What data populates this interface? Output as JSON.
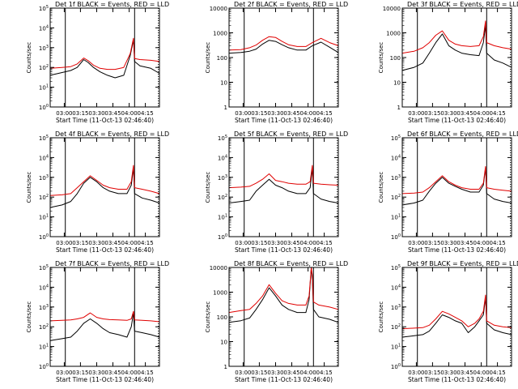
{
  "colors": {
    "events": "#000000",
    "lld": "#e00000",
    "axis": "#000000",
    "background": "#ffffff"
  },
  "shared": {
    "ylabel": "Counts/sec",
    "xlabel": "Start Time (11-Oct-13 02:46:40)",
    "xticks": [
      "03:00",
      "03:15",
      "03:30",
      "03:45",
      "04:00",
      "04:15"
    ]
  },
  "chart_data": [
    {
      "type": "line",
      "title": "Det 1f BLACK = Events, RED = LLD",
      "yscale": "log",
      "ylim": [
        1,
        100000
      ],
      "yticks": [
        {
          "v": 1,
          "m": "0"
        },
        {
          "v": 10,
          "m": "1"
        },
        {
          "v": 100,
          "m": "2"
        },
        {
          "v": 1000,
          "m": "3"
        },
        {
          "v": 10000,
          "m": "4"
        },
        {
          "v": 100000,
          "m": "5"
        }
      ],
      "ytick_style": "exp",
      "solid_markers": [
        "03:01",
        "04:05"
      ],
      "dotted_markers": [
        "04:27"
      ],
      "x": [
        "02:47",
        "02:58",
        "03:06",
        "03:12",
        "03:18",
        "03:22",
        "03:27",
        "03:33",
        "03:40",
        "03:47",
        "03:55",
        "04:01",
        "04:04",
        "04:05",
        "04:10",
        "04:20",
        "04:28"
      ],
      "series": [
        {
          "name": "Events",
          "color": "#000000",
          "values": [
            40,
            55,
            70,
            100,
            250,
            180,
            100,
            60,
            40,
            30,
            40,
            400,
            2500,
            200,
            120,
            90,
            50
          ]
        },
        {
          "name": "LLD",
          "color": "#e00000",
          "values": [
            90,
            100,
            110,
            150,
            300,
            220,
            130,
            90,
            80,
            80,
            100,
            500,
            3000,
            280,
            250,
            230,
            200
          ]
        }
      ]
    },
    {
      "type": "line",
      "title": "Det 2f BLACK = Events, RED = LLD",
      "yscale": "log",
      "ylim": [
        1,
        10000
      ],
      "yticks": [
        {
          "v": 1,
          "m": "1"
        },
        {
          "v": 10,
          "m": "10"
        },
        {
          "v": 100,
          "m": "100"
        },
        {
          "v": 1000,
          "m": "1000"
        },
        {
          "v": 10000,
          "m": "10000"
        }
      ],
      "ytick_style": "plain",
      "solid_markers": [
        "03:01",
        "04:05"
      ],
      "dotted_markers": [
        "04:27"
      ],
      "x": [
        "02:47",
        "02:58",
        "03:06",
        "03:12",
        "03:18",
        "03:24",
        "03:30",
        "03:36",
        "03:42",
        "03:50",
        "03:58",
        "04:04",
        "04:12",
        "04:20",
        "04:28"
      ],
      "series": [
        {
          "name": "Events",
          "color": "#000000",
          "values": [
            150,
            160,
            180,
            220,
            350,
            500,
            450,
            330,
            250,
            200,
            200,
            300,
            420,
            260,
            160
          ]
        },
        {
          "name": "LLD",
          "color": "#e00000",
          "values": [
            200,
            210,
            250,
            320,
            500,
            700,
            650,
            450,
            330,
            280,
            280,
            400,
            600,
            400,
            300
          ]
        }
      ]
    },
    {
      "type": "line",
      "title": "Det 3f BLACK = Events, RED = LLD",
      "yscale": "log",
      "ylim": [
        1,
        10000
      ],
      "yticks": [
        {
          "v": 1,
          "m": "1"
        },
        {
          "v": 10,
          "m": "10"
        },
        {
          "v": 100,
          "m": "100"
        },
        {
          "v": 1000,
          "m": "1000"
        },
        {
          "v": 10000,
          "m": "10000"
        }
      ],
      "ytick_style": "plain",
      "solid_markers": [
        "03:01",
        "04:05"
      ],
      "dotted_markers": [
        "04:27"
      ],
      "x": [
        "02:47",
        "02:58",
        "03:06",
        "03:12",
        "03:18",
        "03:24",
        "03:30",
        "03:36",
        "03:42",
        "03:50",
        "03:58",
        "04:02",
        "04:04",
        "04:05",
        "04:12",
        "04:20",
        "04:28"
      ],
      "series": [
        {
          "name": "Events",
          "color": "#000000",
          "values": [
            30,
            40,
            60,
            150,
            400,
            900,
            300,
            200,
            150,
            130,
            120,
            400,
            2000,
            150,
            80,
            60,
            40
          ]
        },
        {
          "name": "LLD",
          "color": "#e00000",
          "values": [
            150,
            180,
            250,
            400,
            800,
            1200,
            500,
            350,
            300,
            280,
            300,
            700,
            3000,
            400,
            300,
            250,
            220
          ]
        }
      ]
    },
    {
      "type": "line",
      "title": "Det 4f BLACK = Events, RED = LLD",
      "yscale": "log",
      "ylim": [
        1,
        100000
      ],
      "yticks": [
        {
          "v": 1,
          "m": "0"
        },
        {
          "v": 10,
          "m": "1"
        },
        {
          "v": 100,
          "m": "2"
        },
        {
          "v": 1000,
          "m": "3"
        },
        {
          "v": 10000,
          "m": "4"
        },
        {
          "v": 100000,
          "m": "5"
        }
      ],
      "ytick_style": "exp",
      "solid_markers": [
        "03:01",
        "04:05"
      ],
      "dotted_markers": [
        "04:27"
      ],
      "x": [
        "02:47",
        "02:58",
        "03:06",
        "03:12",
        "03:18",
        "03:24",
        "03:30",
        "03:36",
        "03:42",
        "03:50",
        "03:58",
        "04:02",
        "04:04",
        "04:05",
        "04:12",
        "04:20",
        "04:28"
      ],
      "series": [
        {
          "name": "Events",
          "color": "#000000",
          "values": [
            30,
            40,
            60,
            150,
            500,
            1000,
            600,
            300,
            200,
            150,
            150,
            400,
            3000,
            150,
            90,
            70,
            50
          ]
        },
        {
          "name": "LLD",
          "color": "#e00000",
          "values": [
            120,
            130,
            150,
            300,
            600,
            1200,
            700,
            400,
            300,
            250,
            250,
            600,
            4000,
            300,
            250,
            200,
            150
          ]
        }
      ]
    },
    {
      "type": "line",
      "title": "Det 5f BLACK = Events, RED = LLD",
      "yscale": "log",
      "ylim": [
        1,
        100000
      ],
      "yticks": [
        {
          "v": 1,
          "m": "0"
        },
        {
          "v": 10,
          "m": "1"
        },
        {
          "v": 100,
          "m": "2"
        },
        {
          "v": 1000,
          "m": "3"
        },
        {
          "v": 10000,
          "m": "4"
        },
        {
          "v": 100000,
          "m": "5"
        }
      ],
      "ytick_style": "exp",
      "solid_markers": [
        "03:01",
        "04:05"
      ],
      "dotted_markers": [
        "04:27"
      ],
      "x": [
        "02:47",
        "02:58",
        "03:06",
        "03:12",
        "03:18",
        "03:24",
        "03:30",
        "03:36",
        "03:42",
        "03:50",
        "03:58",
        "04:02",
        "04:04",
        "04:05",
        "04:12",
        "04:20",
        "04:28"
      ],
      "series": [
        {
          "name": "Events",
          "color": "#000000",
          "values": [
            50,
            60,
            70,
            200,
            400,
            800,
            400,
            300,
            200,
            150,
            150,
            300,
            3000,
            150,
            80,
            60,
            50
          ]
        },
        {
          "name": "LLD",
          "color": "#e00000",
          "values": [
            300,
            320,
            350,
            500,
            800,
            1500,
            700,
            600,
            500,
            450,
            450,
            600,
            4000,
            500,
            450,
            420,
            400
          ]
        }
      ]
    },
    {
      "type": "line",
      "title": "Det 6f BLACK = Events, RED = LLD",
      "yscale": "log",
      "ylim": [
        1,
        100000
      ],
      "yticks": [
        {
          "v": 1,
          "m": "0"
        },
        {
          "v": 10,
          "m": "1"
        },
        {
          "v": 100,
          "m": "2"
        },
        {
          "v": 1000,
          "m": "3"
        },
        {
          "v": 10000,
          "m": "4"
        },
        {
          "v": 100000,
          "m": "5"
        }
      ],
      "ytick_style": "exp",
      "solid_markers": [
        "03:01",
        "04:05"
      ],
      "dotted_markers": [
        "04:27"
      ],
      "x": [
        "02:47",
        "02:58",
        "03:06",
        "03:12",
        "03:18",
        "03:24",
        "03:30",
        "03:36",
        "03:42",
        "03:50",
        "03:58",
        "04:02",
        "04:04",
        "04:05",
        "04:12",
        "04:20",
        "04:28"
      ],
      "series": [
        {
          "name": "Events",
          "color": "#000000",
          "values": [
            40,
            50,
            70,
            200,
            500,
            1000,
            500,
            350,
            250,
            180,
            180,
            400,
            3000,
            150,
            80,
            60,
            50
          ]
        },
        {
          "name": "LLD",
          "color": "#e00000",
          "values": [
            150,
            160,
            180,
            300,
            600,
            1200,
            600,
            400,
            300,
            250,
            250,
            500,
            3500,
            300,
            250,
            220,
            200
          ]
        }
      ]
    },
    {
      "type": "line",
      "title": "Det 7f BLACK = Events, RED = LLD",
      "yscale": "log",
      "ylim": [
        1,
        100000
      ],
      "yticks": [
        {
          "v": 1,
          "m": "0"
        },
        {
          "v": 10,
          "m": "1"
        },
        {
          "v": 100,
          "m": "2"
        },
        {
          "v": 1000,
          "m": "3"
        },
        {
          "v": 10000,
          "m": "4"
        },
        {
          "v": 100000,
          "m": "5"
        }
      ],
      "ytick_style": "exp",
      "solid_markers": [
        "03:01",
        "04:05"
      ],
      "dotted_markers": [
        "04:27"
      ],
      "x": [
        "02:47",
        "02:58",
        "03:06",
        "03:12",
        "03:18",
        "03:24",
        "03:30",
        "03:36",
        "03:42",
        "03:50",
        "03:58",
        "04:02",
        "04:04",
        "04:05",
        "04:12",
        "04:20",
        "04:28"
      ],
      "series": [
        {
          "name": "Events",
          "color": "#000000",
          "values": [
            20,
            25,
            30,
            60,
            150,
            250,
            150,
            80,
            50,
            40,
            30,
            100,
            500,
            60,
            50,
            40,
            30
          ]
        },
        {
          "name": "LLD",
          "color": "#e00000",
          "values": [
            200,
            210,
            220,
            250,
            300,
            500,
            300,
            250,
            230,
            220,
            210,
            250,
            600,
            220,
            210,
            200,
            180
          ]
        }
      ]
    },
    {
      "type": "line",
      "title": "Det 8f BLACK = Events, RED = LLD",
      "yscale": "log",
      "ylim": [
        1,
        10000
      ],
      "yticks": [
        {
          "v": 1,
          "m": "1"
        },
        {
          "v": 10,
          "m": "10"
        },
        {
          "v": 100,
          "m": "100"
        },
        {
          "v": 1000,
          "m": "1000"
        },
        {
          "v": 10000,
          "m": "10000"
        }
      ],
      "ytick_style": "plain",
      "solid_markers": [
        "03:01",
        "04:05"
      ],
      "dotted_markers": [
        "04:27"
      ],
      "x": [
        "02:47",
        "02:58",
        "03:06",
        "03:12",
        "03:18",
        "03:24",
        "03:30",
        "03:36",
        "03:42",
        "03:50",
        "03:58",
        "04:01",
        "04:03",
        "04:04",
        "04:05",
        "04:10",
        "04:20",
        "04:28"
      ],
      "series": [
        {
          "name": "Events",
          "color": "#000000",
          "values": [
            60,
            70,
            90,
            200,
            500,
            1500,
            700,
            300,
            200,
            150,
            150,
            500,
            10000,
            3000,
            200,
            100,
            80,
            60
          ]
        },
        {
          "name": "LLD",
          "color": "#e00000",
          "values": [
            150,
            180,
            200,
            350,
            700,
            2000,
            900,
            450,
            350,
            300,
            300,
            700,
            10000,
            5000,
            400,
            300,
            250,
            200
          ]
        }
      ]
    },
    {
      "type": "line",
      "title": "Det 9f BLACK = Events, RED = LLD",
      "yscale": "log",
      "ylim": [
        1,
        100000
      ],
      "yticks": [
        {
          "v": 1,
          "m": "0"
        },
        {
          "v": 10,
          "m": "1"
        },
        {
          "v": 100,
          "m": "2"
        },
        {
          "v": 1000,
          "m": "3"
        },
        {
          "v": 10000,
          "m": "4"
        },
        {
          "v": 100000,
          "m": "5"
        }
      ],
      "ytick_style": "exp",
      "solid_markers": [
        "03:01",
        "04:05"
      ],
      "dotted_markers": [
        "04:27"
      ],
      "x": [
        "02:47",
        "02:58",
        "03:06",
        "03:12",
        "03:18",
        "03:24",
        "03:30",
        "03:36",
        "03:42",
        "03:48",
        "03:54",
        "03:58",
        "04:02",
        "04:04",
        "04:05",
        "04:12",
        "04:20",
        "04:28"
      ],
      "series": [
        {
          "name": "Events",
          "color": "#000000",
          "values": [
            30,
            35,
            40,
            60,
            150,
            400,
            300,
            200,
            150,
            50,
            100,
            200,
            400,
            3000,
            150,
            70,
            50,
            40
          ]
        },
        {
          "name": "LLD",
          "color": "#e00000",
          "values": [
            80,
            85,
            90,
            120,
            250,
            600,
            450,
            300,
            200,
            100,
            150,
            250,
            600,
            4000,
            200,
            120,
            100,
            90
          ]
        }
      ]
    }
  ]
}
